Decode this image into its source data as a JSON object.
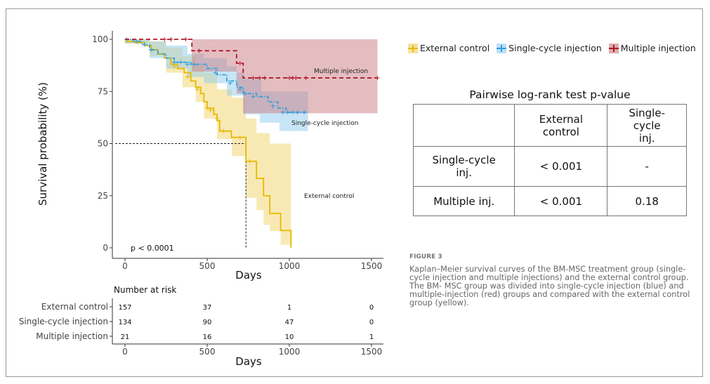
{
  "chart_data": {
    "type": "line",
    "subtype": "kaplan-meier",
    "ylabel": "Survival probability (%)",
    "xlabel": "Days",
    "xlim": [
      0,
      1500
    ],
    "ylim": [
      0,
      100
    ],
    "xticks": [
      "0",
      "500",
      "1000",
      "1500"
    ],
    "yticks": [
      "0",
      "25",
      "50",
      "75",
      "100"
    ],
    "grid": false,
    "pvalue_label": "p < 0.0001",
    "median_line": {
      "y": 50,
      "x": 736
    },
    "series": [
      {
        "name": "External control",
        "color": "#E7B800",
        "line": "solid",
        "label": "External control",
        "steps": [
          [
            0,
            99
          ],
          [
            60,
            98.5
          ],
          [
            120,
            97
          ],
          [
            160,
            95
          ],
          [
            200,
            93
          ],
          [
            240,
            91
          ],
          [
            280,
            88
          ],
          [
            320,
            86
          ],
          [
            360,
            84
          ],
          [
            400,
            80
          ],
          [
            430,
            77
          ],
          [
            460,
            74
          ],
          [
            480,
            70
          ],
          [
            500,
            67
          ],
          [
            540,
            64
          ],
          [
            560,
            61
          ],
          [
            576,
            56
          ],
          [
            647,
            53
          ],
          [
            736,
            41.5
          ],
          [
            800,
            33.3
          ],
          [
            843,
            25
          ],
          [
            881,
            16.5
          ],
          [
            947,
            8.3
          ],
          [
            1010,
            0
          ]
        ],
        "ci_upper": [
          [
            0,
            100
          ],
          [
            150,
            99
          ],
          [
            250,
            96
          ],
          [
            350,
            92
          ],
          [
            430,
            88
          ],
          [
            480,
            84
          ],
          [
            560,
            76
          ],
          [
            650,
            72
          ],
          [
            736,
            62
          ],
          [
            800,
            55
          ],
          [
            881,
            50
          ],
          [
            1010,
            50
          ]
        ],
        "ci_lower": [
          [
            0,
            98
          ],
          [
            150,
            92
          ],
          [
            250,
            84
          ],
          [
            350,
            77
          ],
          [
            430,
            70
          ],
          [
            480,
            62
          ],
          [
            560,
            52
          ],
          [
            650,
            44
          ],
          [
            736,
            24
          ],
          [
            800,
            18
          ],
          [
            843,
            11
          ],
          [
            881,
            8
          ],
          [
            947,
            1.5
          ],
          [
            1010,
            0
          ]
        ],
        "censored": [
          [
            20,
            99
          ],
          [
            80,
            98.5
          ],
          [
            170,
            95
          ],
          [
            300,
            87
          ],
          [
            380,
            82
          ],
          [
            440,
            76
          ],
          [
            500,
            67
          ],
          [
            520,
            66
          ],
          [
            560,
            62
          ],
          [
            600,
            56
          ],
          [
            700,
            53
          ],
          [
            760,
            41.5
          ]
        ]
      },
      {
        "name": "Single-cycle injection",
        "color": "#2E9FDF",
        "line": "dotdash",
        "label": "Single-cycle injection",
        "steps": [
          [
            0,
            100
          ],
          [
            50,
            99
          ],
          [
            100,
            97.5
          ],
          [
            150,
            95
          ],
          [
            200,
            93
          ],
          [
            250,
            91
          ],
          [
            300,
            89
          ],
          [
            400,
            88
          ],
          [
            500,
            86
          ],
          [
            560,
            83
          ],
          [
            620,
            80
          ],
          [
            680,
            77
          ],
          [
            720,
            74
          ],
          [
            800,
            72.5
          ],
          [
            870,
            70
          ],
          [
            930,
            67
          ],
          [
            980,
            65
          ],
          [
            1114,
            65
          ]
        ],
        "ci_upper": [
          [
            0,
            100
          ],
          [
            150,
            99
          ],
          [
            250,
            97
          ],
          [
            380,
            93
          ],
          [
            480,
            91
          ],
          [
            620,
            87
          ],
          [
            680,
            84
          ],
          [
            720,
            81
          ],
          [
            830,
            75
          ],
          [
            1114,
            75
          ]
        ],
        "ci_lower": [
          [
            0,
            98
          ],
          [
            150,
            91
          ],
          [
            250,
            86
          ],
          [
            380,
            82
          ],
          [
            480,
            79
          ],
          [
            620,
            73
          ],
          [
            720,
            64
          ],
          [
            820,
            60
          ],
          [
            940,
            56
          ],
          [
            1114,
            56
          ]
        ],
        "censored": [
          [
            10,
            100
          ],
          [
            70,
            99
          ],
          [
            120,
            97.5
          ],
          [
            160,
            95
          ],
          [
            300,
            89
          ],
          [
            340,
            89
          ],
          [
            380,
            88
          ],
          [
            420,
            88
          ],
          [
            550,
            84
          ],
          [
            640,
            79
          ],
          [
            700,
            76
          ],
          [
            730,
            74
          ],
          [
            780,
            72.5
          ],
          [
            900,
            68
          ],
          [
            960,
            65
          ],
          [
            990,
            65
          ],
          [
            1020,
            65
          ],
          [
            1050,
            65
          ],
          [
            1090,
            65
          ]
        ]
      },
      {
        "name": "Multiple injection",
        "color": "#B2182B",
        "line": "dashed",
        "label": "Multiple injection",
        "steps": [
          [
            0,
            100
          ],
          [
            407,
            94.5
          ],
          [
            679,
            88.5
          ],
          [
            719,
            81.5
          ],
          [
            1536,
            81.5
          ]
        ],
        "ci_upper": [
          [
            407,
            100
          ],
          [
            1536,
            100
          ]
        ],
        "ci_lower": [
          [
            407,
            84.5
          ],
          [
            679,
            74
          ],
          [
            719,
            64.5
          ],
          [
            1536,
            64.5
          ]
        ],
        "censored": [
          [
            240,
            100
          ],
          [
            280,
            100
          ],
          [
            370,
            100
          ],
          [
            450,
            94.5
          ],
          [
            700,
            88.5
          ],
          [
            780,
            81.5
          ],
          [
            820,
            81.5
          ],
          [
            850,
            81.5
          ],
          [
            1000,
            81.5
          ],
          [
            1020,
            81.5
          ],
          [
            1040,
            81.5
          ],
          [
            1100,
            81.5
          ],
          [
            1536,
            81.5
          ]
        ]
      }
    ],
    "risk_table": {
      "title": "Number at risk",
      "xlabel": "Days",
      "times": [
        "0",
        "500",
        "1000",
        "1500"
      ],
      "rows": [
        {
          "name": "External control",
          "values": [
            "157",
            "37",
            "1",
            "0"
          ]
        },
        {
          "name": "Single-cycle injection",
          "values": [
            "134",
            "90",
            "47",
            "0"
          ]
        },
        {
          "name": "Multiple injection",
          "values": [
            "21",
            "16",
            "10",
            "1"
          ]
        }
      ]
    }
  },
  "pairwise": {
    "title": "Pairwise log-rank test p-value",
    "col_headers": [
      "",
      "External control",
      "Single-cycle inj."
    ],
    "rows": [
      {
        "label": "Single-cycle inj.",
        "values": [
          "< 0.001",
          "-"
        ]
      },
      {
        "label": "Multiple inj.",
        "values": [
          "< 0.001",
          "0.18"
        ]
      }
    ]
  },
  "caption": {
    "figure_label": "FIGURE 3",
    "text": "Kaplan–Meier survival curves of the BM-MSC treatment group (single-cycle injection and multiple injections) and the external control group. The BM- MSC group was divided into single-cycle injection (blue) and multiple-injection (red) groups and compared with the external control group (yellow)."
  }
}
